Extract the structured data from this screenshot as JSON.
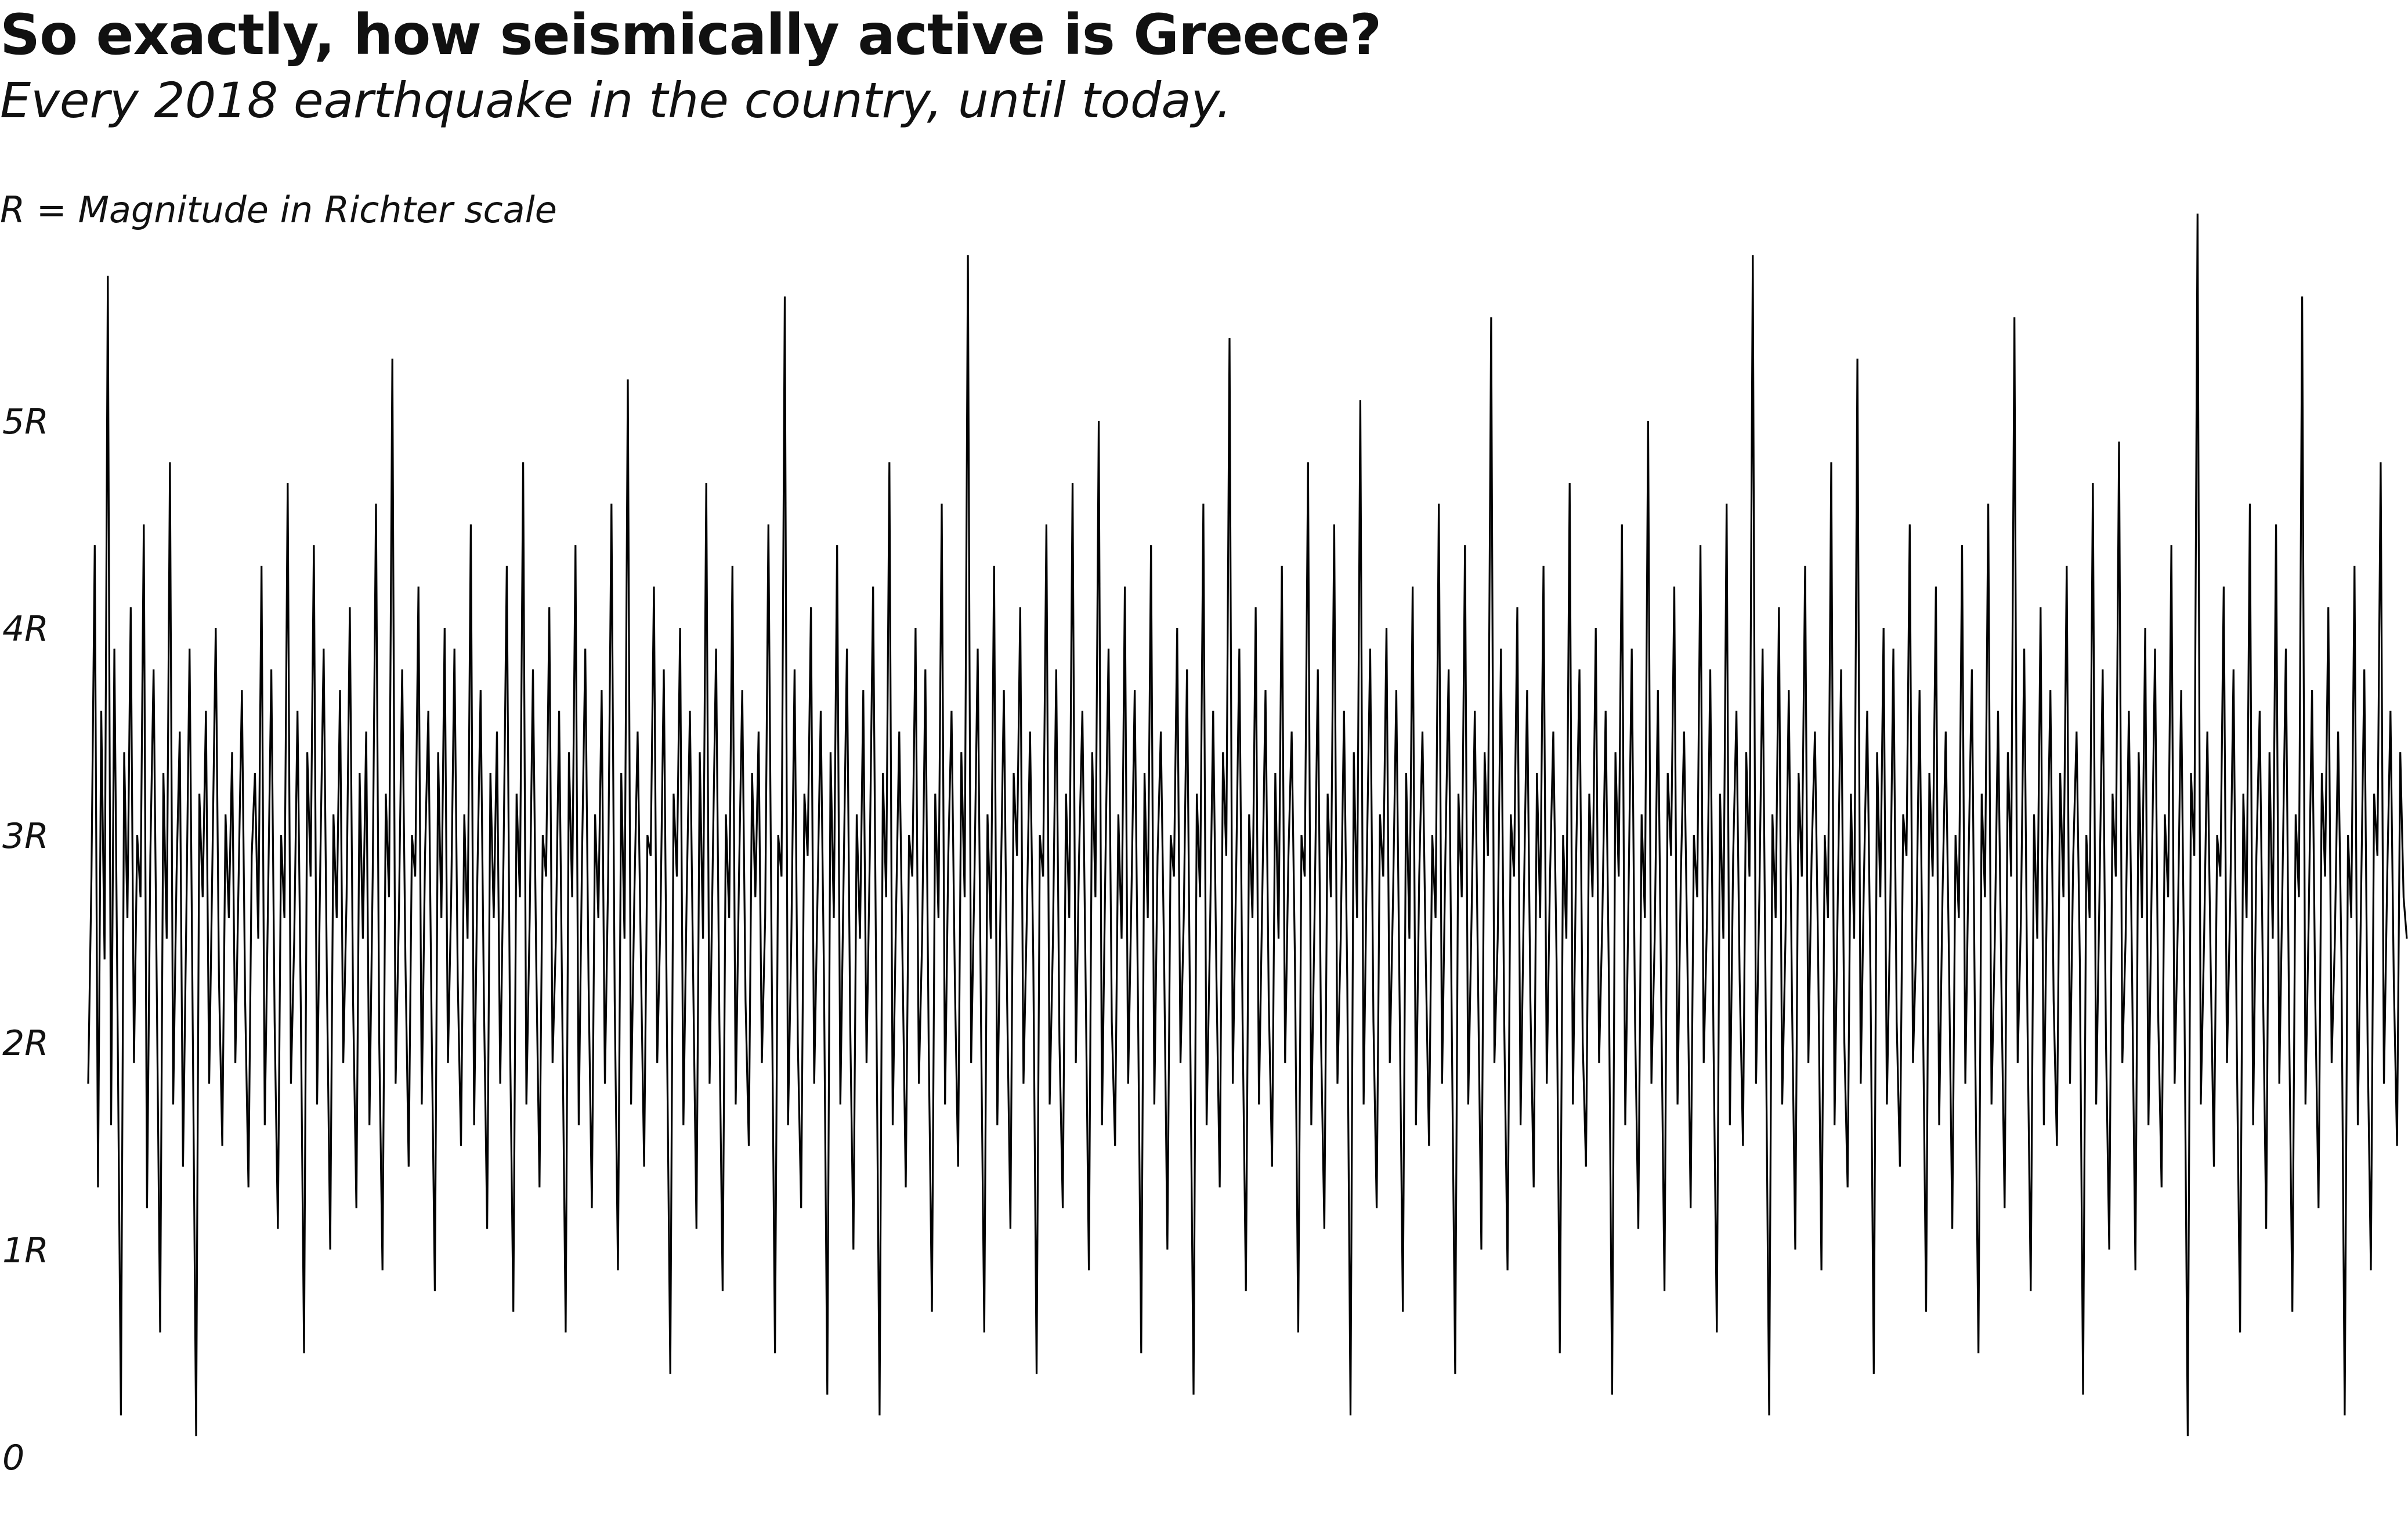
{
  "title": "So exactly, how seismically active is Greece?",
  "subtitle": "Every 2018 earthquake in the country, until today.",
  "note": "R = Magnitude in Richter scale",
  "chart_data": {
    "type": "line",
    "ylim": [
      0,
      6
    ],
    "yticks": [
      {
        "value": 0,
        "label": "0"
      },
      {
        "value": 1,
        "label": "1R"
      },
      {
        "value": 2,
        "label": "2R"
      },
      {
        "value": 3,
        "label": "3R"
      },
      {
        "value": 4,
        "label": "4R"
      },
      {
        "value": 5,
        "label": "5R"
      }
    ],
    "series": [
      {
        "values": [
          1.8,
          2.8,
          4.4,
          1.3,
          3.6,
          2.4,
          5.7,
          1.6,
          3.9,
          2.1,
          0.2,
          3.4,
          2.6,
          4.1,
          1.9,
          3.0,
          2.7,
          4.5,
          1.2,
          2.9,
          3.8,
          2.2,
          0.6,
          3.3,
          2.5,
          4.8,
          1.7,
          2.8,
          3.5,
          1.4,
          2.6,
          3.9,
          2.0,
          0.1,
          3.2,
          2.7,
          3.6,
          1.8,
          2.9,
          4.0,
          2.3,
          1.5,
          3.1,
          2.6,
          3.4,
          1.9,
          2.8,
          3.7,
          2.2,
          1.3,
          2.9,
          3.3,
          2.5,
          4.3,
          1.6,
          2.7,
          3.8,
          2.1,
          1.1,
          3.0,
          2.6,
          4.7,
          1.8,
          2.5,
          3.6,
          2.2,
          0.5,
          3.4,
          2.8,
          4.4,
          1.7,
          2.9,
          3.9,
          2.3,
          1.0,
          3.1,
          2.6,
          3.7,
          1.9,
          2.7,
          4.1,
          2.2,
          1.2,
          3.3,
          2.5,
          3.5,
          1.6,
          2.8,
          4.6,
          2.0,
          0.9,
          3.2,
          2.7,
          5.3,
          1.8,
          2.6,
          3.8,
          2.4,
          1.4,
          3.0,
          2.8,
          4.2,
          1.7,
          2.9,
          3.6,
          2.1,
          0.8,
          3.4,
          2.6,
          4.0,
          1.9,
          2.7,
          3.9,
          2.3,
          1.5,
          3.1,
          2.5,
          4.5,
          1.6,
          2.8,
          3.7,
          2.2,
          1.1,
          3.3,
          2.6,
          3.5,
          1.8,
          2.9,
          4.3,
          2.0,
          0.7,
          3.2,
          2.7,
          4.8,
          1.7,
          2.6,
          3.8,
          2.4,
          1.3,
          3.0,
          2.8,
          4.1,
          1.9,
          2.5,
          3.6,
          2.1,
          0.6,
          3.4,
          2.7,
          4.4,
          1.6,
          2.9,
          3.9,
          2.3,
          1.2,
          3.1,
          2.6,
          3.7,
          1.8,
          2.8,
          4.6,
          2.2,
          0.9,
          3.3,
          2.5,
          5.2,
          1.7,
          2.7,
          3.5,
          2.4,
          1.4,
          3.0,
          2.9,
          4.2,
          1.9,
          2.6,
          3.8,
          2.0,
          0.4,
          3.2,
          2.8,
          4.0,
          1.6,
          2.7,
          3.6,
          2.3,
          1.1,
          3.4,
          2.5,
          4.7,
          1.8,
          2.9,
          3.9,
          2.1,
          0.8,
          3.1,
          2.6,
          4.3,
          1.7,
          2.8,
          3.7,
          2.2,
          1.5,
          3.3,
          2.7,
          3.5,
          1.9,
          2.6,
          4.5,
          2.4,
          0.5,
          3.0,
          2.8,
          5.6,
          1.6,
          2.5,
          3.8,
          2.0,
          1.2,
          3.2,
          2.9,
          4.1,
          1.8,
          2.7,
          3.6,
          2.3,
          0.3,
          3.4,
          2.6,
          4.4,
          1.7,
          2.8,
          3.9,
          2.1,
          1.0,
          3.1,
          2.5,
          3.7,
          1.9,
          2.9,
          4.2,
          2.2,
          0.2,
          3.3,
          2.7,
          4.8,
          1.6,
          2.6,
          3.5,
          2.4,
          1.3,
          3.0,
          2.8,
          4.0,
          1.8,
          2.5,
          3.8,
          2.0,
          0.7,
          3.2,
          2.6,
          4.6,
          1.7,
          2.9,
          3.6,
          2.3,
          1.4,
          3.4,
          2.7,
          5.8,
          1.9,
          2.8,
          3.9,
          2.1,
          0.6,
          3.1,
          2.5,
          4.3,
          1.6,
          2.7,
          3.7,
          2.2,
          1.1,
          3.3,
          2.9,
          4.1,
          1.8,
          2.6,
          3.5,
          2.4,
          0.4,
          3.0,
          2.8,
          4.5,
          1.7,
          2.5,
          3.8,
          2.0,
          1.2,
          3.2,
          2.6,
          4.7,
          1.9,
          2.9,
          3.6,
          2.3,
          0.9,
          3.4,
          2.7,
          5.0,
          1.6,
          2.8,
          3.9,
          2.1,
          1.5,
          3.1,
          2.5,
          4.2,
          1.8,
          2.7,
          3.7,
          2.2,
          0.5,
          3.3,
          2.6,
          4.4,
          1.7,
          2.9,
          3.5,
          2.4,
          1.0,
          3.0,
          2.8,
          4.0,
          1.9,
          2.6,
          3.8,
          2.0,
          0.3,
          3.2,
          2.7,
          4.6,
          1.6,
          2.5,
          3.6,
          2.3,
          1.3,
          3.4,
          2.9,
          5.4,
          1.8,
          2.8,
          3.9,
          2.1,
          0.8,
          3.1,
          2.6,
          4.1,
          1.7,
          2.7,
          3.7,
          2.2,
          1.4,
          3.3,
          2.5,
          4.3,
          1.9,
          2.9,
          3.5,
          2.4,
          0.6,
          3.0,
          2.8,
          4.8,
          1.6,
          2.6,
          3.8,
          2.0,
          1.1,
          3.2,
          2.7,
          4.5,
          1.8,
          2.5,
          3.6,
          2.3,
          0.2,
          3.4,
          2.6,
          5.1,
          1.7,
          2.9,
          3.9,
          2.1,
          1.2,
          3.1,
          2.8,
          4.0,
          1.9,
          2.7,
          3.7,
          2.2,
          0.7,
          3.3,
          2.5,
          4.2,
          1.6,
          2.8,
          3.5,
          2.4,
          1.5,
          3.0,
          2.6,
          4.6,
          1.8,
          2.9,
          3.8,
          2.0,
          0.4,
          3.2,
          2.7,
          4.4,
          1.7,
          2.6,
          3.6,
          2.3,
          1.0,
          3.4,
          2.9,
          5.5,
          1.9,
          2.5,
          3.9,
          2.1,
          0.9,
          3.1,
          2.8,
          4.1,
          1.6,
          2.7,
          3.7,
          2.2,
          1.3,
          3.3,
          2.6,
          4.3,
          1.8,
          2.8,
          3.5,
          2.4,
          0.5,
          3.0,
          2.5,
          4.7,
          1.7,
          2.9,
          3.8,
          2.0,
          1.4,
          3.2,
          2.7,
          4.0,
          1.9,
          2.6,
          3.6,
          2.3,
          0.3,
          3.4,
          2.8,
          4.5,
          1.6,
          2.7,
          3.9,
          2.1,
          1.1,
          3.1,
          2.6,
          5.0,
          1.8,
          2.5,
          3.7,
          2.2,
          0.8,
          3.3,
          2.9,
          4.2,
          1.7,
          2.8,
          3.5,
          2.4,
          1.2,
          3.0,
          2.7,
          4.4,
          1.9,
          2.6,
          3.8,
          2.0,
          0.6,
          3.2,
          2.5,
          4.6,
          1.6,
          2.9,
          3.6,
          2.3,
          1.5,
          3.4,
          2.8,
          5.8,
          1.8,
          2.7,
          3.9,
          2.1,
          0.2,
          3.1,
          2.6,
          4.1,
          1.7,
          2.5,
          3.7,
          2.2,
          1.0,
          3.3,
          2.8,
          4.3,
          1.9,
          2.9,
          3.5,
          2.4,
          0.9,
          3.0,
          2.6,
          4.8,
          1.6,
          2.7,
          3.8,
          2.0,
          1.3,
          3.2,
          2.5,
          5.3,
          1.8,
          2.8,
          3.6,
          2.3,
          0.4,
          3.4,
          2.7,
          4.0,
          1.7,
          2.6,
          3.9,
          2.1,
          1.4,
          3.1,
          2.9,
          4.5,
          1.9,
          2.5,
          3.7,
          2.2,
          0.7,
          3.3,
          2.8,
          4.2,
          1.6,
          2.7,
          3.5,
          2.4,
          1.1,
          3.0,
          2.6,
          4.4,
          1.8,
          2.9,
          3.8,
          2.0,
          0.5,
          3.2,
          2.7,
          4.6,
          1.7,
          2.5,
          3.6,
          2.3,
          1.2,
          3.4,
          2.8,
          5.5,
          1.9,
          2.6,
          3.9,
          2.1,
          0.8,
          3.1,
          2.5,
          4.1,
          1.6,
          2.8,
          3.7,
          2.2,
          1.5,
          3.3,
          2.7,
          4.3,
          1.8,
          2.9,
          3.5,
          2.4,
          0.3,
          3.0,
          2.6,
          4.7,
          1.7,
          2.7,
          3.8,
          2.0,
          1.0,
          3.2,
          2.8,
          4.9,
          1.9,
          2.5,
          3.6,
          2.3,
          0.9,
          3.4,
          2.6,
          4.0,
          1.6,
          2.8,
          3.9,
          2.1,
          1.3,
          3.1,
          2.7,
          4.4,
          1.8,
          2.6,
          3.7,
          2.2,
          0.1,
          3.3,
          2.9,
          6.0,
          1.7,
          2.5,
          3.5,
          2.4,
          1.4,
          3.0,
          2.8,
          4.2,
          1.9,
          2.7,
          3.8,
          2.0,
          0.6,
          3.2,
          2.6,
          4.6,
          1.6,
          2.9,
          3.6,
          2.3,
          1.1,
          3.4,
          2.5,
          4.5,
          1.8,
          2.8,
          3.9,
          2.1,
          0.7,
          3.1,
          2.7,
          5.6,
          1.7,
          2.6,
          3.7,
          2.2,
          1.2,
          3.3,
          2.8,
          4.1,
          1.9,
          2.5,
          3.5,
          2.4,
          0.2,
          3.0,
          2.6,
          4.3,
          1.6,
          2.7,
          3.8,
          2.0,
          0.9,
          3.2,
          2.9,
          4.8,
          1.8,
          2.8,
          3.6,
          2.3,
          1.5,
          3.4,
          2.7,
          2.5
        ]
      }
    ]
  }
}
